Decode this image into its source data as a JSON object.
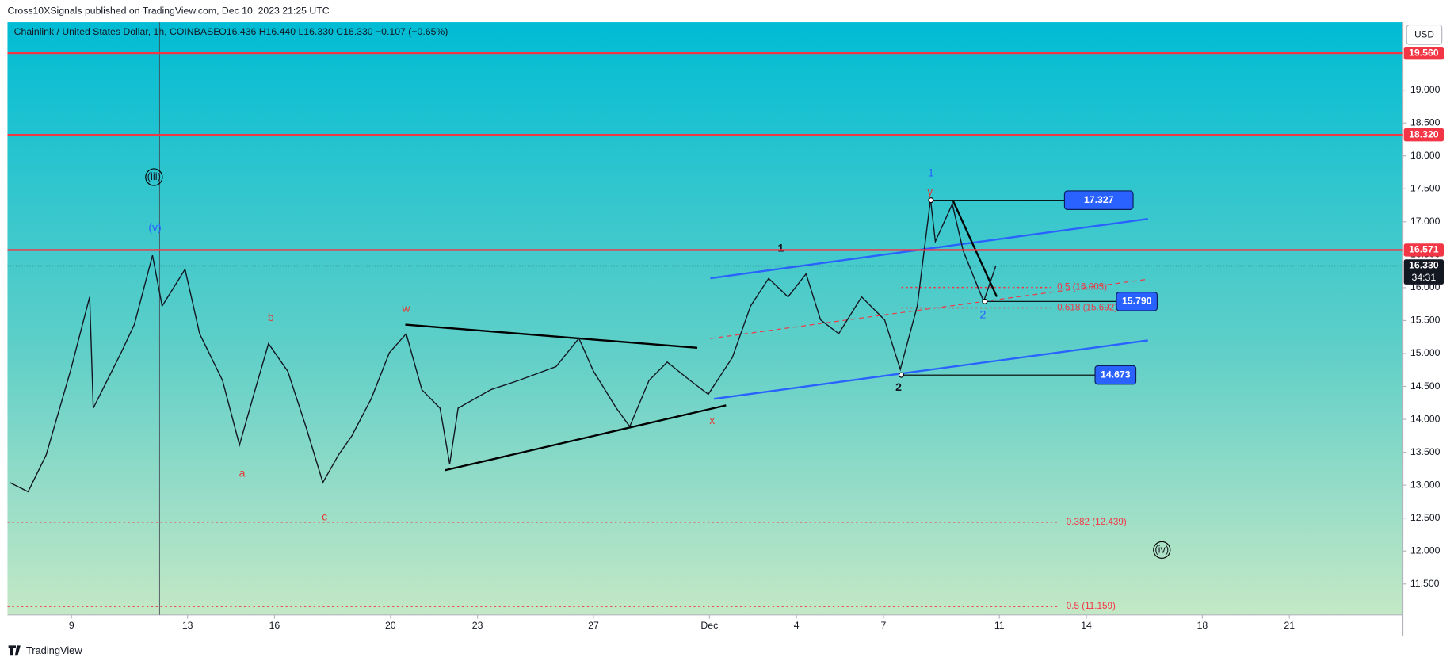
{
  "header": "Cross10XSignals published on TradingView.com, Dec 10, 2023 21:25 UTC",
  "chart_data": {
    "type": "line",
    "title": "Chainlink / United States Dollar, 1h, COINBASE",
    "legend": "O16.436  H16.440  L16.330  C16.330  −0.107 (−0.65%)",
    "currency": "USD",
    "color": "#131722",
    "x": [
      "2023-11-06T21:00",
      "2023-11-07T12:00",
      "2023-11-08T03:00",
      "2023-11-08T23:00",
      "2023-11-09T15:00",
      "2023-11-09T18:00",
      "2023-11-10T17:00",
      "2023-11-11T04:00",
      "2023-11-11T19:00",
      "2023-11-12T03:00",
      "2023-11-12T22:00",
      "2023-11-13T10:00",
      "2023-11-14T05:00",
      "2023-11-14T19:00",
      "2023-11-15T08:00",
      "2023-11-15T19:00",
      "2023-11-16T11:00",
      "2023-11-17T02:00",
      "2023-11-17T16:00",
      "2023-11-18T05:00",
      "2023-11-18T16:00",
      "2023-11-19T08:00",
      "2023-11-19T23:00",
      "2023-11-20T13:00",
      "2023-11-21T02:00",
      "2023-11-21T17:00",
      "2023-11-22T01:00",
      "2023-11-22T08:00",
      "2023-11-23T11:00",
      "2023-11-24T10:00",
      "2023-11-25T17:00",
      "2023-11-26T12:00",
      "2023-11-27T00:00",
      "2023-11-27T19:00",
      "2023-11-28T06:00",
      "2023-11-28T22:00",
      "2023-11-29T13:00",
      "2023-11-30T08:00",
      "2023-11-30T23:00",
      "2023-12-01T19:00",
      "2023-12-02T10:00",
      "2023-12-03T01:00",
      "2023-12-03T17:00",
      "2023-12-04T08:00",
      "2023-12-04T20:00",
      "2023-12-05T11:00",
      "2023-12-06T06:00",
      "2023-12-07T01:00",
      "2023-12-07T14:00",
      "2023-12-08T04:00",
      "2023-12-08T15:00",
      "2023-12-08T19:00",
      "2023-12-09T09:00",
      "2023-12-09T18:00",
      "2023-12-10T11:00",
      "2023-12-10T21:00"
    ],
    "values": [
      13.04,
      12.9,
      13.46,
      14.73,
      15.86,
      14.17,
      15.01,
      15.44,
      16.49,
      15.72,
      16.28,
      15.3,
      14.59,
      13.61,
      14.45,
      15.15,
      14.73,
      13.89,
      13.04,
      13.46,
      13.75,
      14.31,
      15.01,
      15.3,
      14.45,
      14.17,
      13.32,
      14.17,
      14.45,
      14.59,
      14.8,
      15.23,
      14.73,
      14.17,
      13.89,
      14.59,
      14.87,
      14.59,
      14.38,
      14.94,
      15.72,
      16.14,
      15.86,
      16.21,
      15.51,
      15.3,
      15.86,
      15.51,
      14.76,
      15.72,
      17.34,
      16.7,
      17.27,
      16.56,
      15.79,
      16.33
    ],
    "xlim": [
      "2023-11-06T19:00",
      "2023-12-24T22:00"
    ],
    "xticks": [
      {
        "value": "2023-11-09",
        "label": "9"
      },
      {
        "value": "2023-11-13",
        "label": "13"
      },
      {
        "value": "2023-11-16",
        "label": "16"
      },
      {
        "value": "2023-11-20",
        "label": "20"
      },
      {
        "value": "2023-11-23",
        "label": "23"
      },
      {
        "value": "2023-11-27",
        "label": "27"
      },
      {
        "value": "2023-12-01",
        "label": "Dec"
      },
      {
        "value": "2023-12-04",
        "label": "4"
      },
      {
        "value": "2023-12-07",
        "label": "7"
      },
      {
        "value": "2023-12-11",
        "label": "11"
      },
      {
        "value": "2023-12-14",
        "label": "14"
      },
      {
        "value": "2023-12-18",
        "label": "18"
      },
      {
        "value": "2023-12-21",
        "label": "21"
      }
    ],
    "ylim": [
      11.03,
      20.03
    ],
    "yticks": [
      {
        "value": 11.5,
        "label": "11.500"
      },
      {
        "value": 12,
        "label": "12.000"
      },
      {
        "value": 12.5,
        "label": "12.500"
      },
      {
        "value": 13,
        "label": "13.000"
      },
      {
        "value": 13.5,
        "label": "13.500"
      },
      {
        "value": 14,
        "label": "14.000"
      },
      {
        "value": 14.5,
        "label": "14.500"
      },
      {
        "value": 15,
        "label": "15.000"
      },
      {
        "value": 15.5,
        "label": "15.500"
      },
      {
        "value": 16,
        "label": "16.000"
      },
      {
        "value": 16.5,
        "label": "16.500"
      },
      {
        "value": 17,
        "label": "17.000"
      },
      {
        "value": 17.5,
        "label": "17.500"
      },
      {
        "value": 18,
        "label": "18.000"
      },
      {
        "value": 18.5,
        "label": "18.500"
      },
      {
        "value": 19,
        "label": "19.000"
      }
    ],
    "levels": [
      {
        "value": 19.56,
        "label": "19.560"
      },
      {
        "value": 18.32,
        "label": "18.320"
      },
      {
        "value": 16.571,
        "label": "16.571"
      }
    ],
    "level_color": "#f23645",
    "last_price": {
      "value": 16.33,
      "label": "16.330"
    },
    "countdown": "34:31",
    "fib_levels": [
      {
        "value": 12.439,
        "label": "0.382 (12.439)"
      },
      {
        "value": 11.159,
        "label": "0.5 (11.159)"
      },
      {
        "value": 16.003,
        "label": "0.5 (16.003)"
      },
      {
        "value": 15.692,
        "label": "0.618 (15.692)"
      }
    ],
    "price_callouts": [
      {
        "value": 17.327,
        "label": "17.327"
      },
      {
        "value": 15.79,
        "label": "15.790"
      },
      {
        "value": 14.673,
        "label": "14.673"
      }
    ],
    "callout_color": "#2962ff",
    "wave_labels": [
      "(iii)",
      "(v)",
      "a",
      "b",
      "c",
      "w",
      "x",
      "1",
      "2",
      "y",
      "1",
      "2",
      "(iv)"
    ]
  },
  "footer": "TradingView"
}
